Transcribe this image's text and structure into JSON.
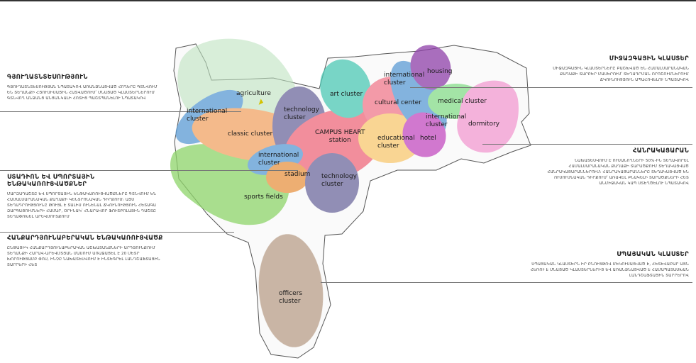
{
  "colors": {
    "agriculture": "#bfe3c0",
    "international": "#5b9bd5",
    "classic": "#f2a566",
    "technology": "#6e6a9e",
    "campus_heart": "#ef6a7c",
    "stadium": "#e89545",
    "sports": "#8ed46a",
    "art": "#4cc9b4",
    "cultural": "#f07a8c",
    "educational": "#f8c870",
    "housing": "#8e3fa8",
    "medical": "#86dc8a",
    "hotel": "#c34cc0",
    "dormitory": "#f29ad0",
    "officers": "#b89e88"
  },
  "map_labels": {
    "agriculture": "agriculture",
    "international_left": "international\ncluster",
    "classic": "classic cluster",
    "technology_top": "technology\ncluster",
    "campus_heart": "CAMPUS HEART\nstation",
    "international_center": "international\ncluster",
    "stadium": "stadium",
    "technology_bottom": "technology\ncluster",
    "sports": "sports fields",
    "art": "art cluster",
    "cultural": "cultural center",
    "educational": "educational\ncluster",
    "international_right_top": "international\ncluster",
    "housing": "housing",
    "medical": "medical cluster",
    "international_right": "international\ncluster",
    "hotel": "hotel",
    "dormitory": "dormitory",
    "officers": "officers\ncluster"
  },
  "left_blocks": [
    {
      "title": "ԳՅՈՒՂԱՏՆՏԵՍՈՒԹՅՈՒՆ",
      "body": "ԳՅՈՒՂԱՏՆՏԵՍՈՒԹՅԱՆ ՆՊԱՏԱԿՈՎ ԱՌԱՆՁՆԱՑՎԱԾ ՀՈՂԵՐԸ ԳՏՆՎՈՒՄ ԵՆ ՏԵՂԱՆՔԻ ՀՅՈՒՍԻՍԱՅԻՆ ՀԱՏՎԱԾՈՒՄ՝ ՄՆԱՑԱԾ ԿԼԱՍՏԵՐՆԵՐՈՒՄ ԳՏՆՎՈՂ ԱՆՁԱՆՑ ԱՆՑԱՆԿԱԼԻ ՀՈՏԻՑ ՊԱՇՏՊԱՆԵԼՈՒ ՆՊԱՏԱԿՈՎ"
    },
    {
      "title": "ՍՏԱԴԻՈՆ ԵՎ ՍՊՈՐՏԱՅԻՆ ԵՆԹԱԿԱՌՈՒՑՎԱԾՔՆԵՐ",
      "body": "ՄԱՐԶԱԴԱՇՏԸ ԵՎ ՍՊՈՐՏԱՅԻՆ ԵՆԹԱԿԱՌՈՒՑՎԱԾՔՆԵՐԸ ԳՏՆՎՈՒՄ ԵՆ ՀԱՄԱԼՍԱՐԱՆԱԿԱՆ ՔԱՂԱՔԻ ԿԵՆՏՐՈՆԱԿԱՆ ԴԻՐՔՈՒՄ։ ԱՅՍ ՏԵՂԱԴՐՈՒԹՅՈՒՆԸ ԹՈՒՅԼ Է ՏԱԼԻՍ ՈՒՆԵՆԱԼ ՃԿՈՒՆՈՒԹՅՈՒՆ ՀԵՏԱԳԱ ԶԱՐԳԱՑՈՒՄՆԵՐԻ ՀԱՄԱՐ, ՕՐԻՆԱԿ՝ ՀՆԱՐԱՎՈՐ ՖՈՒՏԲՈԼԱՅԻՆ ԴԱՇՏԸ ՏԵՂԱՓՈԽԵԼ ԱՐԵՎՄՈՒՏՔՈՒՄ"
    },
    {
      "title": "ՀԱՆՔԱՐԴՅՈՒՆԱԲԵՐԱԿԱՆ ԵՆԹԱԿԱՌՈՒՑՎԱԾՔ",
      "body": "ԸՆԹԱՑԻԿ ՀԱՆՔԱՐԴՅՈՒՆԱԲԵՐԱԿԱՆ ԱՇԽԱՏԱՆՔՆԵՐԻ ԱՐԴՅՈՒՆՔՈՒՄ ՏԵՂԱՆՔԻ ՀԱՐԱՎ-ԱՐԵՎՄՏՅԱՆ ՄԱՍՈՒՄ ԱՌԱՋԱՑԵԼ Է 20 ՄԵՏՐ ԽՈՐՈՒԹՅԱՄԲ ՓՈՍ, ԻՆՉԸ ՆԱԽԱՏԵՍՎՈՒՄ Է ԻՆՏԵԳՐԵԼ ԼԱՆԴՇԱՖՏԱՅԻՆ ՏԱՐՐԵՐԻ ՀԵՏ"
    }
  ],
  "right_blocks": [
    {
      "title": "ՄԻՋԱԶԳԱՅԻՆ ԿԼԱՍՏԵՐ",
      "body": "ՄԻՋԱԶԳԱՅԻՆ ԿԼԱՍՏԵՐՆԵՐԸ ԲԱՇԽՎԱԾ ԵՆ ՀԱՄԱԼՍԱՐԱՆԱԿԱՆ ՔԱՂԱՔԻ ՏԱՐԲԵՐ ՄԱՍԵՐՈՒՄ՝ ՏԵՂԱԴՐՄԱՆ ՈՐՈՇՈՒՄՆԵՐՈՒՄ ՃԿՈՒՆՈՒԹՅՈՒՆ ԱՊԱՀՈՎԵԼՈՒ ՆՊԱՏԱԿՈՎ"
    },
    {
      "title": "ՀԱՆՐԱԿԱՑԱՐԱՆ",
      "body": "ՆԱԽԱՏԵՍՎՈՒՄ Է ՈՒՍԱՆՈՂՆԵՐԻ 50%-ԻՆ ՏԵՂԱՎՈՐԵԼ ՀԱՄԱԼՍԱՐԱՆԱԿԱՆ ՔԱՂԱՔԻ ՏԱՐԱԾՔՈՒՄ ՏԵՂԱԿԱՅՎԱԾ ՀԱՆՐԱԿԱՑԱՐԱՆՆԵՐՈՒՄ։ ՀԱՆՐԱԿԱՑԱՐԱՆՆԵՐԸ ՏԵՂԱԿԱՅՎԱԾ ԵՆ ՈՒՍՈՒՄՆԱԿԱՆ ԴԻՐՔՈՒՄ՝ ԱՌԱՎԵԼ ԲՆԱԿԵԼԻ ՏԱՐԱԾՔՆԵՐԻ ՀԵՏ ԱՆՄԻՋԱԿԱՆ ԿԱՊ ՍՏԵՂԾԵԼՈՒ ՆՊԱՏԱԿՈՎ"
    },
    {
      "title": "ՍՊԱՅԱԿԱՆ ԿԼԱՍՏԵՐ",
      "body": "ՍՊԱՅԱԿԱՆ ԿԼԱՍՏԵՐՆ ԻՐ ԲՆՈՒՅԹՈՎ ՄԵԿՈՒՍԱՑՎԱԾ Է, ՀԵՏԵՎԱԲԱՐ ԱՅՆ ՀԵՌՈՒ Է ՄՆԱՑԱԾ ԿԼԱՍՏԵՐՆԵՐԻՑ ԵՎ ԱՌԱՆՁՆԱՑՎԱԾ Է ՀԱՄԱՊԱՏԱՍԽԱՆ ԼԱՆԴՇԱՖՏԱՅԻՆ ՏԱՐՐԵՐՈՎ"
    }
  ]
}
